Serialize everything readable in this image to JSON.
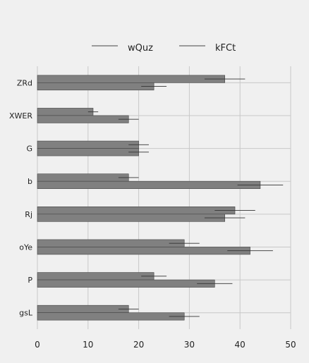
{
  "chart_data": {
    "type": "bar",
    "orientation": "horizontal",
    "categories": [
      "ZRd",
      "XWER",
      "G",
      "b",
      "Rj",
      "oYe",
      "P",
      "gsL"
    ],
    "series": [
      {
        "name": "wQuz",
        "values": [
          37,
          11,
          20,
          18,
          39,
          29,
          23,
          18
        ],
        "errors": [
          4,
          1,
          2,
          2,
          4,
          3,
          2.5,
          2
        ]
      },
      {
        "name": "kFCt",
        "values": [
          23,
          18,
          20,
          44,
          37,
          42,
          35,
          29
        ],
        "errors": [
          2.5,
          2,
          2,
          4.5,
          4,
          4.5,
          3.5,
          3
        ]
      }
    ],
    "xlim": [
      0,
      50
    ],
    "xticks": [
      "0",
      "10",
      "20",
      "30",
      "40",
      "50"
    ],
    "grid": true,
    "legend_position": "top-center",
    "bar_color": "#808080",
    "error_color": "#333333",
    "grid_color": "#c8c8c8",
    "background_color": "#f0f0f0"
  }
}
